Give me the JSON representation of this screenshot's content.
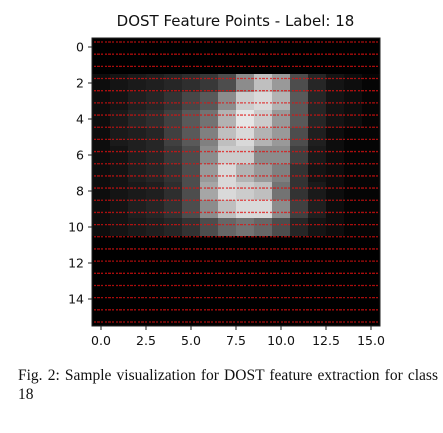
{
  "chart_data": {
    "type": "heatmap",
    "title": "DOST Feature Points - Label: 18",
    "xlabel": "",
    "ylabel": "",
    "xlim": [
      -0.5,
      15.5
    ],
    "ylim": [
      15.5,
      -0.5
    ],
    "x_ticks": [
      "0.0",
      "2.5",
      "5.0",
      "7.5",
      "10.0",
      "12.5",
      "15.0"
    ],
    "y_ticks": [
      "0",
      "2",
      "4",
      "6",
      "8",
      "10",
      "12",
      "14"
    ],
    "colormap": "gray",
    "overlay_text_color": "#e01010",
    "grid": false,
    "cell_values": [
      [
        0,
        0,
        0,
        0,
        0,
        0,
        0,
        0,
        0,
        0,
        0,
        0,
        0,
        0,
        0,
        0
      ],
      [
        0,
        0,
        0,
        0,
        0,
        0,
        0,
        0,
        0,
        0,
        0,
        0,
        0,
        0,
        0,
        0
      ],
      [
        0.05,
        0.08,
        0.1,
        0.12,
        0.15,
        0.18,
        0.22,
        0.3,
        0.55,
        0.75,
        0.6,
        0.3,
        0.15,
        0.08,
        0.05,
        0.02
      ],
      [
        0.05,
        0.08,
        0.12,
        0.15,
        0.2,
        0.28,
        0.35,
        0.55,
        0.8,
        0.85,
        0.7,
        0.35,
        0.15,
        0.08,
        0.05,
        0.02
      ],
      [
        0.05,
        0.1,
        0.15,
        0.18,
        0.25,
        0.35,
        0.45,
        0.7,
        0.9,
        0.8,
        0.6,
        0.35,
        0.15,
        0.08,
        0.05,
        0.02
      ],
      [
        0.05,
        0.1,
        0.12,
        0.15,
        0.25,
        0.35,
        0.5,
        0.75,
        0.85,
        0.7,
        0.6,
        0.3,
        0.12,
        0.05,
        0.02,
        0.02
      ],
      [
        0.05,
        0.08,
        0.12,
        0.15,
        0.22,
        0.3,
        0.55,
        0.8,
        0.8,
        0.55,
        0.55,
        0.25,
        0.1,
        0.05,
        0.02,
        0.02
      ],
      [
        0.05,
        0.08,
        0.12,
        0.15,
        0.2,
        0.3,
        0.6,
        0.85,
        0.7,
        0.6,
        0.5,
        0.2,
        0.08,
        0.05,
        0.02,
        0.02
      ],
      [
        0.05,
        0.08,
        0.1,
        0.12,
        0.18,
        0.3,
        0.65,
        0.85,
        0.8,
        0.75,
        0.45,
        0.2,
        0.1,
        0.05,
        0.02,
        0.02
      ],
      [
        0.05,
        0.08,
        0.12,
        0.15,
        0.2,
        0.3,
        0.55,
        0.75,
        0.85,
        0.85,
        0.55,
        0.25,
        0.12,
        0.05,
        0.02,
        0.02
      ],
      [
        0.05,
        0.08,
        0.1,
        0.12,
        0.15,
        0.2,
        0.3,
        0.4,
        0.45,
        0.4,
        0.3,
        0.15,
        0.08,
        0.05,
        0.02,
        0.02
      ],
      [
        0,
        0,
        0,
        0,
        0,
        0,
        0,
        0,
        0,
        0,
        0,
        0,
        0,
        0,
        0,
        0
      ],
      [
        0,
        0,
        0,
        0,
        0,
        0,
        0,
        0,
        0,
        0,
        0,
        0,
        0,
        0,
        0,
        0
      ],
      [
        0,
        0,
        0,
        0,
        0,
        0,
        0,
        0,
        0,
        0,
        0,
        0,
        0,
        0,
        0,
        0
      ],
      [
        0,
        0,
        0,
        0,
        0,
        0,
        0,
        0,
        0,
        0,
        0,
        0,
        0,
        0,
        0,
        0
      ],
      [
        0,
        0,
        0,
        0,
        0,
        0,
        0,
        0,
        0,
        0,
        0,
        0,
        0,
        0,
        0,
        0
      ]
    ]
  },
  "caption": "Fig. 2: Sample visualization for DOST feature extraction for class 18"
}
